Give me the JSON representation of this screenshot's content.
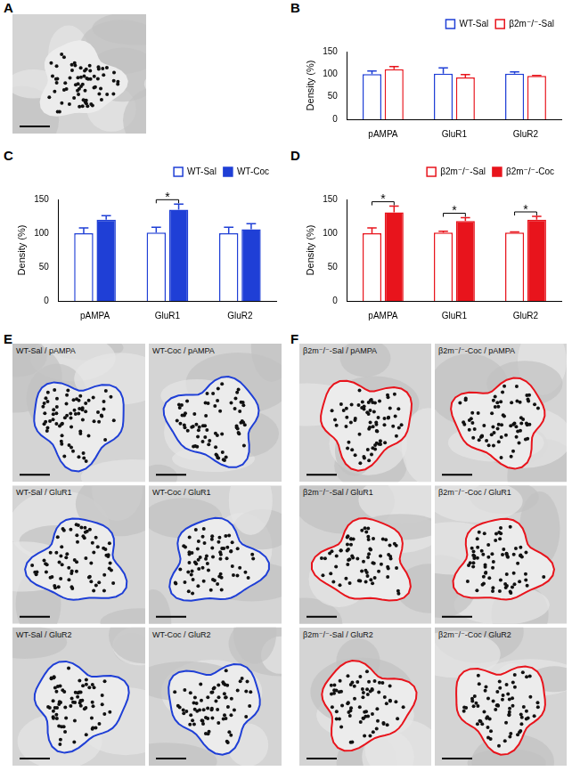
{
  "images": [
    {
      "panel": "A",
      "color": "#1f3fd6"
    },
    {
      "panel": "E",
      "color": "#1f3fd6",
      "labels": [
        "WT-Sal / pAMPA",
        "WT-Coc / pAMPA",
        "WT-Sal / GluR1",
        "WT-Coc / GluR1",
        "WT-Sal / GluR2",
        "WT-Coc / GluR2"
      ]
    },
    {
      "panel": "F",
      "color": "#e8141c",
      "labels": [
        "β2m⁻/⁻-Sal / pAMPA",
        "β2m⁻/⁻-Coc / pAMPA",
        "β2m⁻/⁻-Sal / GluR1",
        "β2m⁻/⁻-Coc / GluR1",
        "β2m⁻/⁻-Sal / GluR2",
        "β2m⁻/⁻-Coc / GluR2"
      ]
    }
  ],
  "chart_data": [
    {
      "panel": "B",
      "type": "bar",
      "y_label": "Density (%)",
      "categories": [
        "pAMPA",
        "GluR1",
        "GluR2"
      ],
      "series": [
        {
          "name": "WT-Sal",
          "color": "#1f3fd6",
          "marker": "open",
          "values": [
            100,
            101,
            101
          ],
          "errors": [
            7,
            13,
            4
          ]
        },
        {
          "name": "β2m⁻/⁻-Sal",
          "color": "#e8141c",
          "marker": "open",
          "values": [
            111,
            93,
            96
          ],
          "errors": [
            6,
            6,
            1
          ]
        }
      ],
      "ylim": [
        0,
        150
      ],
      "yticks": [
        0,
        50,
        100,
        150
      ],
      "grid": false,
      "legend": "top"
    },
    {
      "panel": "C",
      "type": "bar",
      "y_label": "Density (%)",
      "categories": [
        "pAMPA",
        "GluR1",
        "GluR2"
      ],
      "series": [
        {
          "name": "WT-Sal",
          "color": "#1f3fd6",
          "marker": "open",
          "values": [
            100,
            101,
            100
          ],
          "errors": [
            8,
            8,
            9
          ]
        },
        {
          "name": "WT-Coc",
          "color": "#1f3fd6",
          "marker": "filled",
          "values": [
            120,
            135,
            106
          ],
          "errors": [
            6,
            8,
            8
          ]
        }
      ],
      "annotations": [
        {
          "category": "GluR1",
          "text": "*"
        }
      ],
      "ylim": [
        0,
        150
      ],
      "yticks": [
        0,
        50,
        100,
        150
      ],
      "grid": false,
      "legend": "top"
    },
    {
      "panel": "D",
      "type": "bar",
      "y_label": "Density (%)",
      "categories": [
        "pAMPA",
        "GluR1",
        "GluR2"
      ],
      "series": [
        {
          "name": "β2m⁻/⁻-Sal",
          "color": "#e8141c",
          "marker": "open",
          "values": [
            100,
            101,
            101
          ],
          "errors": [
            8,
            2,
            1
          ]
        },
        {
          "name": "β2m⁻/⁻-Coc",
          "color": "#e8141c",
          "marker": "filled",
          "values": [
            131,
            118,
            120
          ],
          "errors": [
            9,
            5,
            5
          ]
        }
      ],
      "annotations": [
        {
          "category": "pAMPA",
          "text": "*"
        },
        {
          "category": "GluR1",
          "text": "*"
        },
        {
          "category": "GluR2",
          "text": "*"
        }
      ],
      "ylim": [
        0,
        150
      ],
      "yticks": [
        0,
        50,
        100,
        150
      ],
      "grid": false,
      "legend": "top"
    }
  ]
}
